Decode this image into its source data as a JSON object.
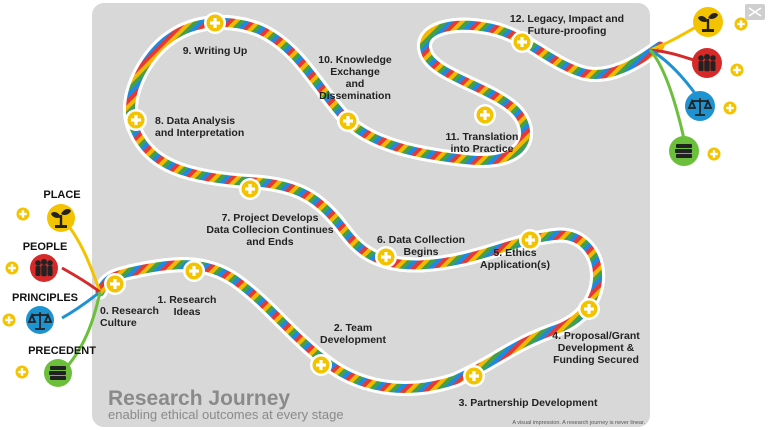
{
  "diagram": {
    "title": "Research Journey",
    "subtitle": "enabling ethical outcomes at every stage",
    "footnote": "A visual impression. A research journey is never linear.",
    "stages": [
      {
        "id": "s0",
        "lines": [
          "0. Research",
          "Culture"
        ]
      },
      {
        "id": "s1",
        "lines": [
          "1. Research",
          "Ideas"
        ]
      },
      {
        "id": "s2",
        "lines": [
          "2. Team",
          "Development"
        ]
      },
      {
        "id": "s3",
        "lines": [
          "3. Partnership Development"
        ]
      },
      {
        "id": "s4",
        "lines": [
          "4. Proposal/Grant",
          "Development &",
          "Funding Secured"
        ]
      },
      {
        "id": "s5",
        "lines": [
          "5. Ethics",
          "Application(s)"
        ]
      },
      {
        "id": "s6",
        "lines": [
          "6. Data Collection",
          "Begins"
        ]
      },
      {
        "id": "s7",
        "lines": [
          "7. Project Develops",
          "Data Collecion Continues",
          "and Ends"
        ]
      },
      {
        "id": "s8",
        "lines": [
          "8. Data Analysis",
          "and Interpretation"
        ]
      },
      {
        "id": "s9",
        "lines": [
          "9. Writing Up"
        ]
      },
      {
        "id": "s10",
        "lines": [
          "10. Knowledge",
          "Exchange",
          "and",
          "Dissemination"
        ]
      },
      {
        "id": "s11",
        "lines": [
          "11. Translation",
          "into Practice"
        ]
      },
      {
        "id": "s12",
        "lines": [
          "12. Legacy, Impact and",
          "Future-proofing"
        ]
      }
    ],
    "principles": [
      {
        "label": "PLACE",
        "icon": "plant-icon",
        "color": "#f3c300"
      },
      {
        "label": "PEOPLE",
        "icon": "people-icon",
        "color": "#d62a2a"
      },
      {
        "label": "PRINCIPLES",
        "icon": "scales-icon",
        "color": "#1e93d2"
      },
      {
        "label": "PRECEDENT",
        "icon": "books-icon",
        "color": "#6bbf3a"
      }
    ],
    "colors": {
      "panel": "#d8d8d8",
      "marker": "#f3c300",
      "stripes": [
        "#e53935",
        "#f5b800",
        "#43a047",
        "#1e88e5"
      ]
    }
  }
}
